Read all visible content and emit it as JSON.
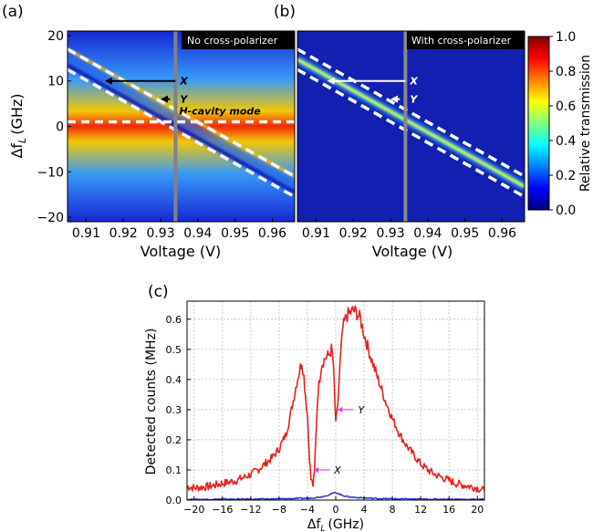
{
  "colors": {
    "trace_red": "#e8201a",
    "trace_blue": "#1f2ad0",
    "annotation_pink": "#e040e0",
    "marker_gray": "#888888"
  },
  "chart_data": [
    {
      "type": "heatmap",
      "panel_label": "(a)",
      "tag": "No cross-polarizer",
      "xlabel": "Voltage (V)",
      "ylabel": "Δf_L (GHz)",
      "ylabel_main": "Δf",
      "ylabel_sub": "L",
      "ylabel_unit": "(GHz)",
      "xlim": [
        0.905,
        0.966
      ],
      "ylim": [
        -21,
        21
      ],
      "xticks": [
        "0.91",
        "0.92",
        "0.93",
        "0.94",
        "0.95",
        "0.96"
      ],
      "yticks": [
        "20",
        "10",
        "0",
        "−10",
        "−20"
      ],
      "xtick_values": [
        0.91,
        0.92,
        0.93,
        0.94,
        0.95,
        0.96
      ],
      "ytick_values": [
        20,
        10,
        0,
        -10,
        -20
      ],
      "marker_voltage": 0.934,
      "cavity_mode_label": "H-cavity mode",
      "cavity_mode_freq": 1,
      "annotations": [
        {
          "label": "X",
          "y": 10
        },
        {
          "label": "Y",
          "y": 6
        }
      ],
      "dashed_lines": [
        {
          "x": [
            0.905,
            0.966
          ],
          "y": [
            17,
            -11
          ]
        },
        {
          "x": [
            0.905,
            0.966
          ],
          "y": [
            12.5,
            -15.5
          ]
        }
      ]
    },
    {
      "type": "heatmap",
      "panel_label": "(b)",
      "tag": "With cross-polarizer",
      "xlabel": "Voltage (V)",
      "xlim": [
        0.905,
        0.966
      ],
      "ylim": [
        -21,
        21
      ],
      "xticks": [
        "0.91",
        "0.92",
        "0.93",
        "0.94",
        "0.95",
        "0.96"
      ],
      "xtick_values": [
        0.91,
        0.92,
        0.93,
        0.94,
        0.95,
        0.96
      ],
      "marker_voltage": 0.934,
      "annotations": [
        {
          "label": "X",
          "y": 10
        },
        {
          "label": "Y",
          "y": 6
        }
      ],
      "dashed_lines": [
        {
          "x": [
            0.905,
            0.966
          ],
          "y": [
            17,
            -11
          ]
        },
        {
          "x": [
            0.905,
            0.966
          ],
          "y": [
            12.5,
            -15.5
          ]
        }
      ]
    },
    {
      "type": "colorbar",
      "label": "Relative transmission",
      "range": [
        0,
        1
      ],
      "ticks": [
        "1.0",
        "0.8",
        "0.6",
        "0.4",
        "0.2",
        "0.0"
      ],
      "tick_values": [
        1.0,
        0.8,
        0.6,
        0.4,
        0.2,
        0.0
      ]
    },
    {
      "type": "line",
      "panel_label": "(c)",
      "xlabel": "Δf_L (GHz)",
      "xlabel_main": "Δf",
      "xlabel_sub": "L",
      "xlabel_unit": "(GHz)",
      "ylabel": "Detected counts (MHz)",
      "xlim": [
        -21,
        21
      ],
      "ylim": [
        0,
        0.66
      ],
      "grid": true,
      "xticks": [
        "−20",
        "−16",
        "−12",
        "−8",
        "−4",
        "0",
        "4",
        "8",
        "12",
        "16",
        "20"
      ],
      "xtick_values": [
        -20,
        -16,
        -12,
        -8,
        -4,
        0,
        4,
        8,
        12,
        16,
        20
      ],
      "yticks": [
        "0.0",
        "0.1",
        "0.2",
        "0.3",
        "0.4",
        "0.5",
        "0.6"
      ],
      "ytick_values": [
        0.0,
        0.1,
        0.2,
        0.3,
        0.4,
        0.5,
        0.6
      ],
      "annotations": [
        {
          "label": "X",
          "x": -3.2,
          "y": 0.1
        },
        {
          "label": "Y",
          "x": 0.2,
          "y": 0.3
        }
      ],
      "series": [
        {
          "color": "#e8201a",
          "x": [
            -21,
            -20,
            -18,
            -16,
            -14,
            -12,
            -11,
            -10,
            -9,
            -8,
            -7,
            -6.5,
            -6,
            -5.5,
            -5,
            -4.8,
            -4.5,
            -4,
            -3.7,
            -3.5,
            -3.2,
            -3,
            -2.8,
            -2.5,
            -2,
            -1.5,
            -1,
            -0.6,
            -0.4,
            -0.2,
            0,
            0.3,
            0.6,
            1,
            1.5,
            2,
            2.5,
            3,
            3.5,
            4,
            4.5,
            5,
            6,
            7,
            8,
            9,
            10,
            11,
            12,
            13,
            14,
            15,
            16,
            17,
            18,
            19,
            20,
            21
          ],
          "y": [
            0.045,
            0.04,
            0.045,
            0.055,
            0.065,
            0.085,
            0.1,
            0.12,
            0.14,
            0.17,
            0.22,
            0.27,
            0.33,
            0.39,
            0.44,
            0.46,
            0.41,
            0.28,
            0.14,
            0.07,
            0.05,
            0.09,
            0.22,
            0.36,
            0.45,
            0.47,
            0.48,
            0.5,
            0.47,
            0.38,
            0.25,
            0.32,
            0.45,
            0.57,
            0.61,
            0.62,
            0.63,
            0.62,
            0.6,
            0.55,
            0.51,
            0.47,
            0.4,
            0.33,
            0.27,
            0.22,
            0.18,
            0.15,
            0.12,
            0.1,
            0.085,
            0.075,
            0.065,
            0.055,
            0.05,
            0.045,
            0.04,
            0.03
          ]
        },
        {
          "color": "#1f2ad0",
          "x": [
            -21,
            -16,
            -12,
            -8,
            -6,
            -4,
            -3,
            -2,
            -1,
            -0.5,
            0,
            0.5,
            1,
            2,
            4,
            6,
            8,
            12,
            16,
            21
          ],
          "y": [
            0.002,
            0.003,
            0.003,
            0.004,
            0.005,
            0.006,
            0.008,
            0.011,
            0.017,
            0.022,
            0.025,
            0.02,
            0.015,
            0.01,
            0.007,
            0.005,
            0.004,
            0.003,
            0.003,
            0.002
          ]
        }
      ]
    }
  ]
}
